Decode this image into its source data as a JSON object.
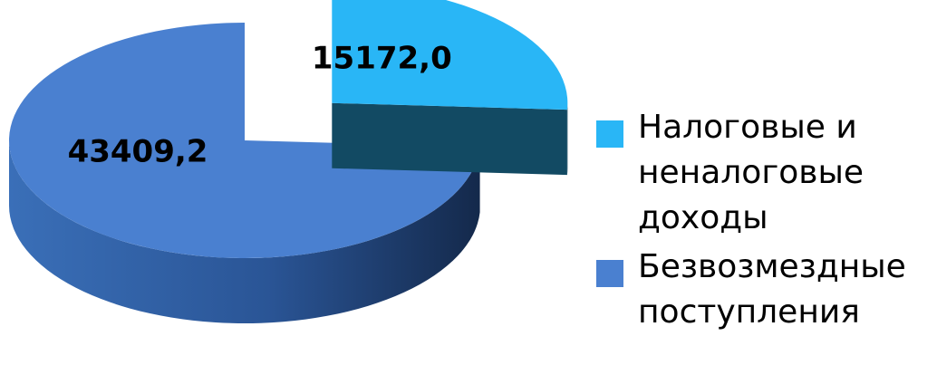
{
  "chart_data": {
    "type": "pie",
    "style": "3d-exploded",
    "title": "",
    "series": [
      {
        "name": "",
        "values": [
          15172.0,
          43409.2
        ]
      }
    ],
    "categories": [
      "Налоговые и неналоговые доходы",
      "Безвозмездные поступления"
    ],
    "data_labels": [
      "15172,0",
      "43409,2"
    ],
    "slices": [
      {
        "category": "Налоговые и неналоговые доходы",
        "value": 15172.0,
        "label": "15172,0",
        "color": "#29B6F6",
        "side_color": "#124A63",
        "exploded": true
      },
      {
        "category": "Безвозмездные поступления",
        "value": 43409.2,
        "label": "43409,2",
        "color": "#4A80D0",
        "side_color": "#1C3F6E",
        "exploded": false
      }
    ],
    "legend": {
      "position": "right",
      "entries": [
        "Налоговые и неналоговые доходы",
        "Безвозмездные поступления"
      ]
    }
  },
  "legend_items": [
    {
      "text": "Налоговые и неналоговые доходы",
      "color": "#29B6F6"
    },
    {
      "text": "Безвозмездные поступления",
      "color": "#4A80D0"
    }
  ]
}
